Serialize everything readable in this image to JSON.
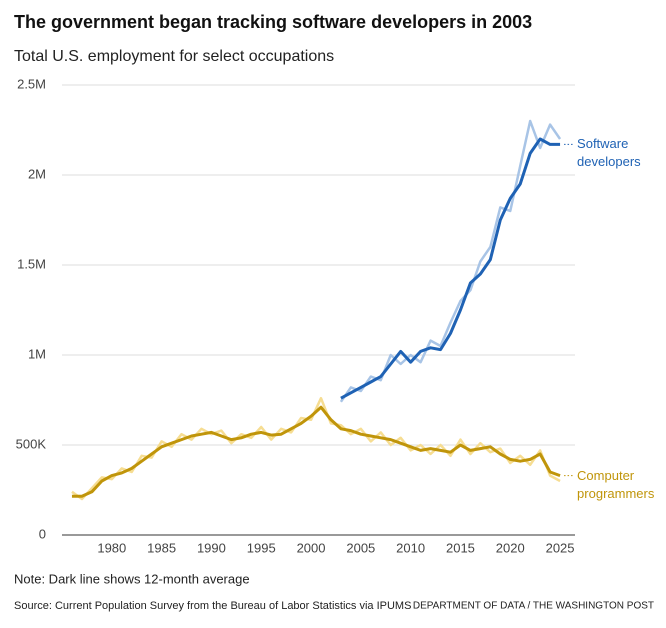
{
  "chart_data": {
    "type": "line",
    "title": "The government began tracking software developers in 2003",
    "subtitle": "Total U.S. employment for select occupations",
    "note": "Note: Dark line shows 12-month average",
    "source": "Source: Current Population Survey from the Bureau of Labor Statistics via IPUMS",
    "credit": "DEPARTMENT OF DATA / THE WASHINGTON POST",
    "x": [
      1976,
      1977,
      1978,
      1979,
      1980,
      1981,
      1982,
      1983,
      1984,
      1985,
      1986,
      1987,
      1988,
      1989,
      1990,
      1991,
      1992,
      1993,
      1994,
      1995,
      1996,
      1997,
      1998,
      1999,
      2000,
      2001,
      2002,
      2003,
      2004,
      2005,
      2006,
      2007,
      2008,
      2009,
      2010,
      2011,
      2012,
      2013,
      2014,
      2015,
      2016,
      2017,
      2018,
      2019,
      2020,
      2021,
      2022,
      2023,
      2024,
      2025
    ],
    "xlim": [
      1975,
      2026.5
    ],
    "xticks": [
      1980,
      1985,
      1990,
      1995,
      2000,
      2005,
      2010,
      2015,
      2020,
      2025
    ],
    "ylim": [
      0,
      2500000
    ],
    "yticks": [
      0,
      {
        "value": 500000,
        "label": "500K"
      },
      {
        "value": 1000000,
        "label": "1M"
      },
      {
        "value": 1500000,
        "label": "1.5M"
      },
      {
        "value": 2000000,
        "label": "2M"
      },
      {
        "value": 2500000,
        "label": "2.5M"
      }
    ],
    "grid": true,
    "series": [
      {
        "name": "Software developers",
        "color": "#1f62b4",
        "raw_color": "#a8c4e6",
        "values": [
          null,
          null,
          null,
          null,
          null,
          null,
          null,
          null,
          null,
          null,
          null,
          null,
          null,
          null,
          null,
          null,
          null,
          null,
          null,
          null,
          null,
          null,
          null,
          null,
          null,
          null,
          null,
          760000,
          790000,
          820000,
          850000,
          880000,
          950000,
          1020000,
          960000,
          1020000,
          1040000,
          1030000,
          1120000,
          1250000,
          1400000,
          1450000,
          1530000,
          1750000,
          1870000,
          1950000,
          2120000,
          2200000,
          2170000,
          2170000
        ],
        "raw_values": [
          null,
          null,
          null,
          null,
          null,
          null,
          null,
          null,
          null,
          null,
          null,
          null,
          null,
          null,
          null,
          null,
          null,
          null,
          null,
          null,
          null,
          null,
          null,
          null,
          null,
          null,
          null,
          740000,
          820000,
          800000,
          880000,
          860000,
          1000000,
          950000,
          1000000,
          960000,
          1080000,
          1050000,
          1180000,
          1300000,
          1360000,
          1520000,
          1600000,
          1820000,
          1800000,
          2050000,
          2300000,
          2150000,
          2280000,
          2200000
        ]
      },
      {
        "name": "Computer programmers",
        "color": "#c0950a",
        "raw_color": "#f6dd92",
        "values": [
          215000,
          215000,
          240000,
          300000,
          330000,
          345000,
          370000,
          410000,
          450000,
          490000,
          510000,
          530000,
          550000,
          560000,
          570000,
          550000,
          530000,
          540000,
          560000,
          570000,
          555000,
          560000,
          590000,
          620000,
          660000,
          710000,
          640000,
          590000,
          580000,
          560000,
          550000,
          540000,
          530000,
          510000,
          490000,
          470000,
          480000,
          470000,
          460000,
          500000,
          470000,
          480000,
          490000,
          450000,
          420000,
          410000,
          420000,
          450000,
          350000,
          330000
        ],
        "raw_values": [
          240000,
          200000,
          260000,
          320000,
          310000,
          370000,
          350000,
          440000,
          430000,
          520000,
          490000,
          560000,
          530000,
          590000,
          560000,
          580000,
          510000,
          560000,
          540000,
          600000,
          530000,
          590000,
          570000,
          650000,
          640000,
          760000,
          620000,
          610000,
          560000,
          590000,
          520000,
          570000,
          500000,
          540000,
          470000,
          500000,
          450000,
          500000,
          440000,
          530000,
          450000,
          510000,
          460000,
          480000,
          400000,
          440000,
          390000,
          470000,
          330000,
          300000
        ]
      }
    ]
  }
}
